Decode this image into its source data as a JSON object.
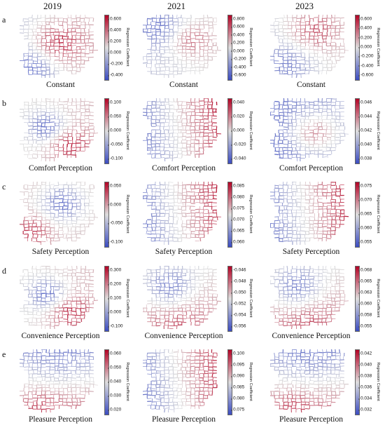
{
  "years": [
    "2019",
    "2021",
    "2023"
  ],
  "cbar_label": "Regression Coefficient",
  "rows": [
    {
      "letter": "a",
      "title": "Constant",
      "panels": [
        {
          "ticks": [
            "0.600",
            "0.400",
            "0.200",
            "0.000",
            "-0.200",
            "-0.400"
          ],
          "pattern": "center-warm"
        },
        {
          "ticks": [
            "0.800",
            "0.600",
            "0.400",
            "0.200",
            "0.000",
            "-0.200",
            "-0.400",
            "-0.600"
          ],
          "pattern": "mixed"
        },
        {
          "ticks": [
            "0.600",
            "0.400",
            "0.200",
            "0.000",
            "-0.200",
            "-0.400",
            "-0.600"
          ],
          "pattern": "north-warm"
        }
      ]
    },
    {
      "letter": "b",
      "title": "Comfort Perception",
      "panels": [
        {
          "ticks": [
            "0.100",
            "0.050",
            "0.000",
            "-0.050",
            "-0.100"
          ],
          "pattern": "center-cool-se-warm"
        },
        {
          "ticks": [
            "0.040",
            "0.020",
            "0.000",
            "-0.020",
            "-0.040"
          ],
          "pattern": "west-cool-east-warm"
        },
        {
          "ticks": [
            "0.046",
            "0.044",
            "0.042",
            "0.040",
            "0.038"
          ],
          "pattern": "west-cool-center-warm"
        }
      ]
    },
    {
      "letter": "c",
      "title": "Safety Perception",
      "panels": [
        {
          "ticks": [
            "0.050",
            "0.000",
            "-0.050",
            "-0.100"
          ],
          "pattern": "center-cool-sw-warm"
        },
        {
          "ticks": [
            "0.085",
            "0.080",
            "0.075",
            "0.070",
            "0.065",
            "0.060"
          ],
          "pattern": "west-cool-east-warm"
        },
        {
          "ticks": [
            "0.075",
            "0.070",
            "0.065",
            "0.060",
            "0.055"
          ],
          "pattern": "west-cool-east-warm"
        }
      ]
    },
    {
      "letter": "d",
      "title": "Convenience Perception",
      "panels": [
        {
          "ticks": [
            "0.300",
            "0.200",
            "0.100",
            "0.000",
            "-0.100"
          ],
          "pattern": "center-cool-se-warm"
        },
        {
          "ticks": [
            "-0.046",
            "-0.048",
            "-0.050",
            "-0.052",
            "-0.054",
            "-0.056"
          ],
          "pattern": "center-cool-south-warm"
        },
        {
          "ticks": [
            "0.068",
            "0.065",
            "0.063",
            "0.060",
            "0.058",
            "0.055"
          ],
          "pattern": "center-cool-south-warm"
        }
      ]
    },
    {
      "letter": "e",
      "title": "Pleasure Perception",
      "panels": [
        {
          "ticks": [
            "0.060",
            "0.050",
            "0.040",
            "0.030",
            "0.020"
          ],
          "pattern": "north-cool-south-warm"
        },
        {
          "ticks": [
            "0.100",
            "0.095",
            "0.090",
            "0.085",
            "0.080",
            "0.075"
          ],
          "pattern": "west-cool-east-warm"
        },
        {
          "ticks": [
            "0.042",
            "0.040",
            "0.038",
            "0.036",
            "0.034",
            "0.032"
          ],
          "pattern": "north-cool-south-warm"
        }
      ]
    }
  ],
  "colors": {
    "low": "#3b4cc0",
    "mid": "#dddddd",
    "high": "#b40426"
  }
}
